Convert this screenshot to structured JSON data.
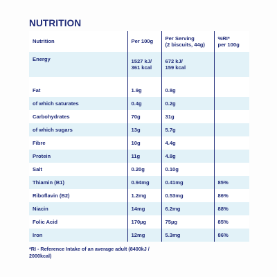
{
  "title": "NUTRITION",
  "table": {
    "headers": [
      "Nutrition",
      "Per 100g",
      "Per Serving\n(2 biscuits, 44g)",
      "%RI*\nper 100g"
    ],
    "energy": {
      "label": "Energy",
      "per100_line1": "1527 kJ/",
      "per100_line2": "361 kcal",
      "serving_line1": "672 kJ/",
      "serving_line2": "159 kcal",
      "ri": ""
    },
    "rows": [
      {
        "label": "Fat",
        "per100": "1.9g",
        "serving": "0.8g",
        "ri": ""
      },
      {
        "label": "of which saturates",
        "per100": "0.4g",
        "serving": "0.2g",
        "ri": ""
      },
      {
        "label": "Carbohydrates",
        "per100": "70g",
        "serving": "31g",
        "ri": ""
      },
      {
        "label": "of which sugars",
        "per100": "13g",
        "serving": "5.7g",
        "ri": ""
      },
      {
        "label": "Fibre",
        "per100": "10g",
        "serving": "4.4g",
        "ri": ""
      },
      {
        "label": "Protein",
        "per100": "11g",
        "serving": "4.8g",
        "ri": ""
      },
      {
        "label": "Salt",
        "per100": "0.20g",
        "serving": "0.10g",
        "ri": ""
      },
      {
        "label": "Thiamin (B1)",
        "per100": "0.94mg",
        "serving": "0.41mg",
        "ri": "85%"
      },
      {
        "label": "Riboflavin (B2)",
        "per100": "1.2mg",
        "serving": "0.53mg",
        "ri": "86%"
      },
      {
        "label": "Niacin",
        "per100": "14mg",
        "serving": "6.2mg",
        "ri": "88%"
      },
      {
        "label": "Folic Acid",
        "per100": "170µg",
        "serving": "75µg",
        "ri": "85%"
      },
      {
        "label": "Iron",
        "per100": "12mg",
        "serving": "5.3mg",
        "ri": "86%"
      }
    ]
  },
  "footnote": "*RI - Reference Intake of an average adult (8400kJ / 2000kcal)",
  "colors": {
    "text": "#1e2a78",
    "shade": "#e2f2f8",
    "background": "#fdfdfd"
  }
}
